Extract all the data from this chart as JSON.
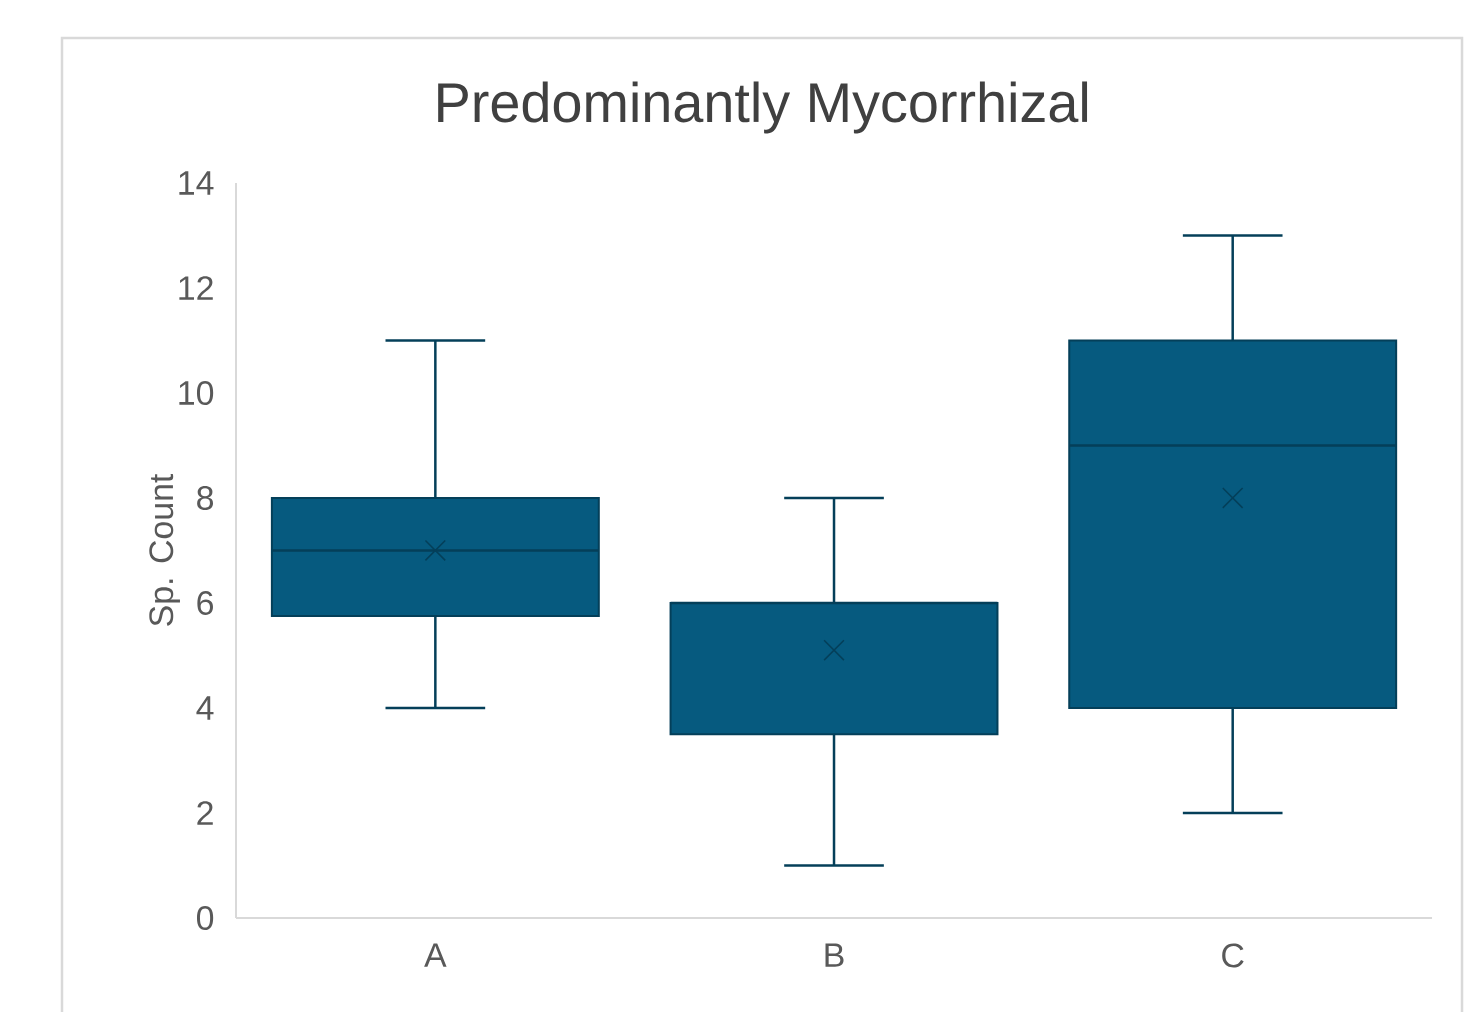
{
  "chart_data": {
    "type": "box",
    "title": "Predominantly Mycorrhizal",
    "ylabel": "Sp. Count",
    "categories": [
      "A",
      "B",
      "C"
    ],
    "color": "#065a7f",
    "boxes": [
      {
        "low": 4,
        "q1": 5.75,
        "median": 7,
        "q3": 8,
        "high": 11,
        "mean": 7
      },
      {
        "low": 1,
        "q1": 3.5,
        "median": 6,
        "q3": 6,
        "high": 8,
        "mean": 5.1
      },
      {
        "low": 2,
        "q1": 4,
        "median": 9,
        "q3": 11,
        "high": 13,
        "mean": 8
      }
    ],
    "ylim": [
      0,
      14
    ],
    "yticks": [
      0,
      2,
      4,
      6,
      8,
      10,
      12,
      14
    ],
    "grid": false
  }
}
